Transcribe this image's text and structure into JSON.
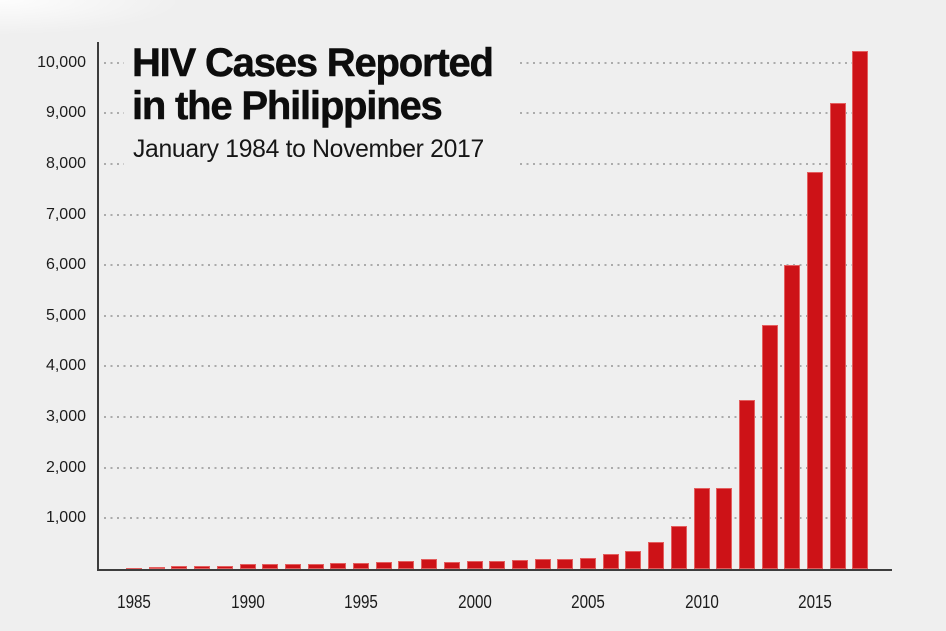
{
  "chart_data": {
    "type": "bar",
    "title": "HIV Cases Reported in the Philippines",
    "title_lines": [
      "HIV Cases Reported",
      "in the Philippines"
    ],
    "subtitle": "January 1984 to November 2017",
    "x": [
      1984,
      1985,
      1986,
      1987,
      1988,
      1989,
      1990,
      1991,
      1992,
      1993,
      1994,
      1995,
      1996,
      1997,
      1998,
      1999,
      2000,
      2001,
      2002,
      2003,
      2004,
      2005,
      2006,
      2007,
      2008,
      2009,
      2010,
      2011,
      2012,
      2013,
      2014,
      2015,
      2016,
      2017
    ],
    "values": [
      2,
      18,
      45,
      62,
      50,
      65,
      90,
      105,
      90,
      105,
      125,
      125,
      145,
      165,
      205,
      145,
      165,
      160,
      185,
      200,
      205,
      225,
      300,
      350,
      530,
      840,
      1600,
      1600,
      3340,
      4820,
      6010,
      7850,
      9200,
      10230
    ],
    "xlabel": "",
    "ylabel": "",
    "ylim": [
      0,
      10500
    ],
    "y_ticks": [
      1000,
      2000,
      3000,
      4000,
      5000,
      6000,
      7000,
      8000,
      9000,
      10000
    ],
    "y_tick_labels": [
      "1,000",
      "2,000",
      "3,000",
      "4,000",
      "5,000",
      "6,000",
      "7,000",
      "8,000",
      "9,000",
      "10,000"
    ],
    "x_tick_years": [
      1985,
      1990,
      1995,
      2000,
      2005,
      2010,
      2015
    ],
    "grid": "horizontal dotted",
    "legend": "none",
    "bar_color": "#cd1217",
    "background_color": "#efefef",
    "axis_color": "#3d3d3d",
    "grid_color": "#ababab",
    "text_color": "#1c1c1c"
  }
}
